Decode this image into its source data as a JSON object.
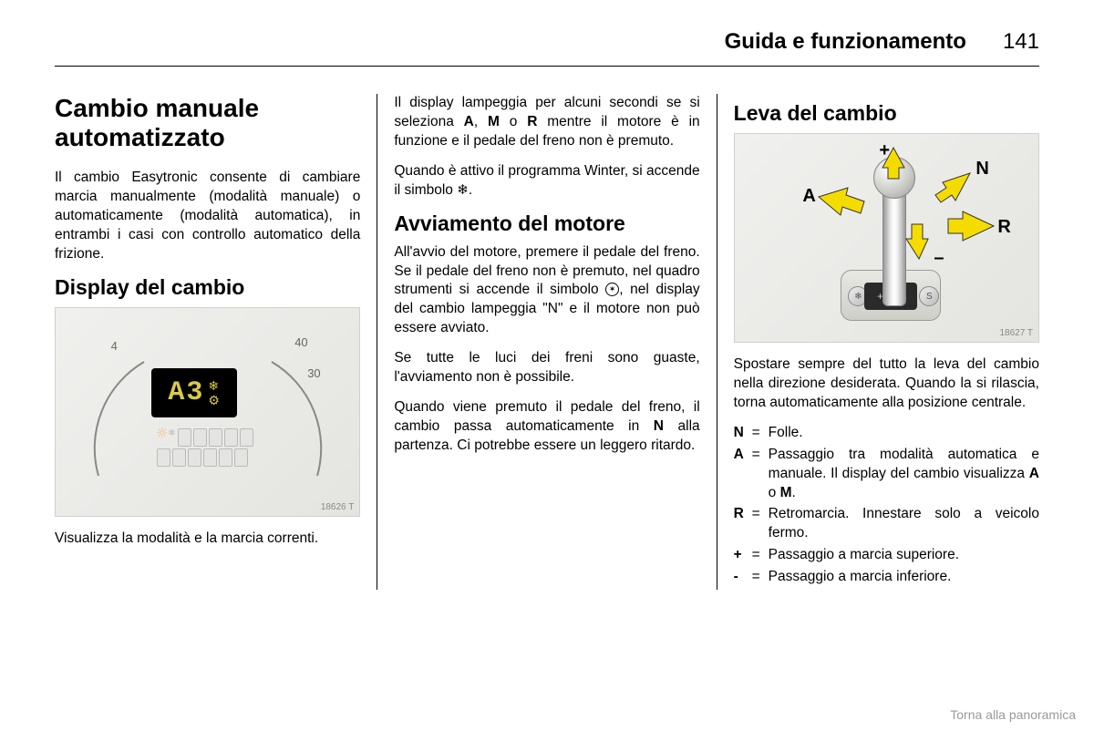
{
  "header": {
    "chapter": "Guida e funzionamento",
    "page": "141"
  },
  "col1": {
    "h1a": "Cambio manuale",
    "h1b": "automatizzato",
    "p1": "Il cambio Easytronic consente di cam­biare marcia manualmente (modalità manuale) o automaticamente (moda­lità automatica), in entrambi i casi con controllo automatico della frizione.",
    "h2": "Display del cambio",
    "img_code": "18626 T",
    "odo_text": "A3",
    "p2": "Visualizza la modalità e la marcia cor­renti."
  },
  "col2": {
    "p1a": "Il display lampeggia per alcuni se­condi se si seleziona ",
    "p1b": ", ",
    "p1c": " o ",
    "p1d": " mentre il motore è in funzione e il pedale del freno non è premuto.",
    "b1": "A",
    "b2": "M",
    "b3": "R",
    "p2a": "Quando è attivo il programma Winter, si accende il simbolo ",
    "p2b": ".",
    "h2": "Avviamento del motore",
    "p3a": "All'avvio del motore, premere il pe­dale del freno. Se il pedale del freno non è premuto, nel quadro strumenti si accende il simbolo ",
    "p3b": ", nel display del cambio lampeggia \"N\" e il motore non può essere avviato.",
    "p4": "Se tutte le luci dei freni sono guaste, l'avviamento non è possibile.",
    "p5a": "Quando viene premuto il pedale del freno, il cambio passa automatica­mente in ",
    "p5b": " alla partenza. Ci potrebbe essere un leggero ritardo.",
    "b4": "N"
  },
  "col3": {
    "h2": "Leva del cambio",
    "img_code": "18627 T",
    "labels": {
      "plus": "+",
      "n": "N",
      "a": "A",
      "r": "R",
      "minus": "–"
    },
    "p1": "Spostare sempre del tutto la leva del cambio nella direzione desiderata. Quando la si rilascia, torna automati­camente alla posizione centrale.",
    "defs": [
      {
        "k": "N",
        "v": "Folle."
      },
      {
        "k": "A",
        "v": "Passaggio tra modalità auto­matica e manuale. Il display del cambio visualizza A o M.",
        "bold": [
          "A",
          "M"
        ]
      },
      {
        "k": "R",
        "v": "Retromarcia. Innestare solo a veicolo fermo."
      },
      {
        "k": "+",
        "v": "Passaggio a marcia superiore."
      },
      {
        "k": "-",
        "v": "Passaggio a marcia inferiore."
      }
    ]
  },
  "footer": "Torna alla panoramica"
}
